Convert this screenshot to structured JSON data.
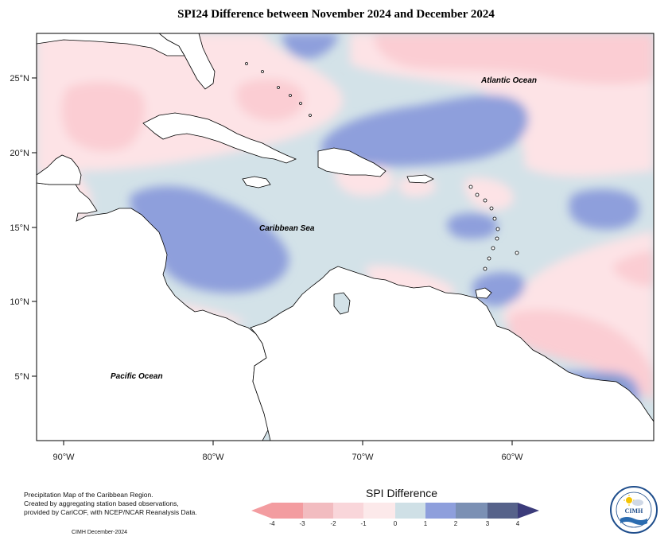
{
  "title": "SPI24 Difference between November 2024 and December 2024",
  "map": {
    "ocean_labels": {
      "atlantic": "Atlantic Ocean",
      "caribbean": "Caribbean Sea",
      "pacific": "Pacific Ocean"
    },
    "lat_ticks": [
      "25°N",
      "20°N",
      "15°N",
      "10°N",
      "5°N"
    ],
    "lon_ticks": [
      "90°W",
      "80°W",
      "70°W",
      "60°W"
    ],
    "colors": {
      "land": "#ffffff",
      "coast": "#000000",
      "neg1": "#fde3e6",
      "neg2": "#fbcdd3",
      "zero": "#d3e2e8",
      "pos1": "#8e9fdc",
      "pos2": "#7f97c8"
    }
  },
  "legend": {
    "title": "SPI Difference",
    "tick_labels": [
      "-4",
      "-3",
      "-2",
      "-1",
      "0",
      "1",
      "2",
      "3",
      "4"
    ],
    "colors": [
      "#f39ca0",
      "#f2bcc0",
      "#f9d6da",
      "#fce9ea",
      "#cfe0e6",
      "#8e9fdc",
      "#7b90b4",
      "#56628a"
    ]
  },
  "notes": {
    "line1": "Precipitation Map of the Caribbean Region.",
    "line2": "Created by aggregating station based observations,",
    "line3": "provided by CariCOF, with NCEP/NCAR Reanalysis Data.",
    "credit": "CIMH December-2024"
  },
  "logo": {
    "text": "CIMH",
    "icon": "cimh-logo-icon"
  }
}
